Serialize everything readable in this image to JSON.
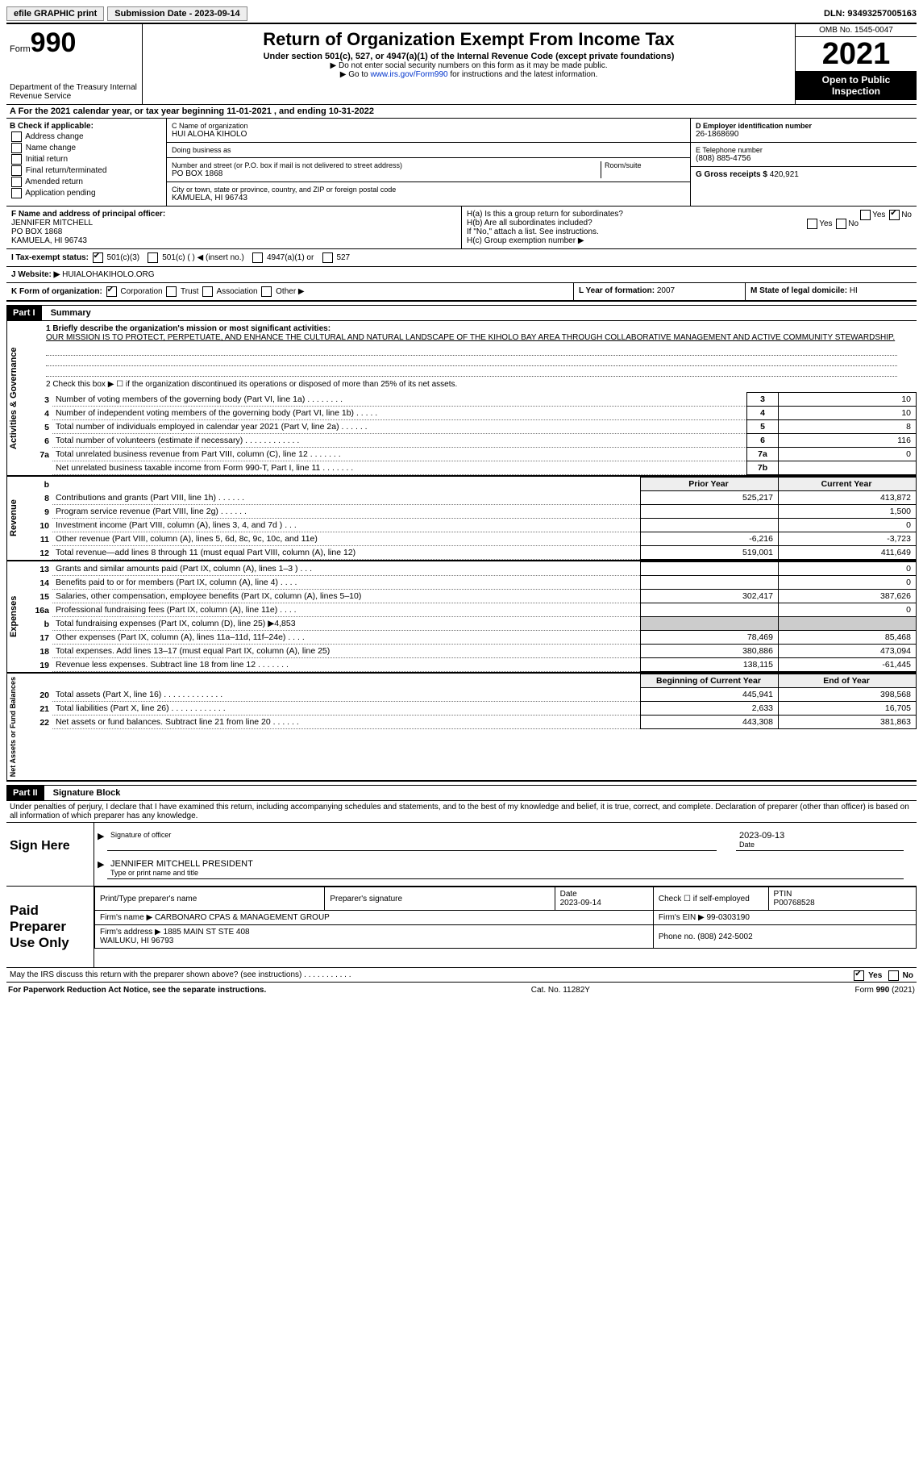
{
  "topbar": {
    "efile": "efile GRAPHIC print",
    "submission": "Submission Date - 2023-09-14",
    "dln": "DLN: 93493257005163"
  },
  "header": {
    "form_word": "Form",
    "form_num": "990",
    "dept": "Department of the Treasury\nInternal Revenue Service",
    "title": "Return of Organization Exempt From Income Tax",
    "subtitle": "Under section 501(c), 527, or 4947(a)(1) of the Internal Revenue Code (except private foundations)",
    "note1": "▶ Do not enter social security numbers on this form as it may be made public.",
    "note2_pre": "▶ Go to ",
    "note2_link": "www.irs.gov/Form990",
    "note2_post": " for instructions and the latest information.",
    "omb": "OMB No. 1545-0047",
    "year": "2021",
    "open": "Open to Public Inspection"
  },
  "rowA": "A For the 2021 calendar year, or tax year beginning 11-01-2021    , and ending 10-31-2022",
  "colB": {
    "title": "B Check if applicable:",
    "opts": [
      "Address change",
      "Name change",
      "Initial return",
      "Final return/terminated",
      "Amended return",
      "Application pending"
    ]
  },
  "colC": {
    "name_lbl": "C Name of organization",
    "name": "HUI ALOHA KIHOLO",
    "dba_lbl": "Doing business as",
    "dba": "",
    "street_lbl": "Number and street (or P.O. box if mail is not delivered to street address)",
    "room_lbl": "Room/suite",
    "street": "PO BOX 1868",
    "city_lbl": "City or town, state or province, country, and ZIP or foreign postal code",
    "city": "KAMUELA, HI  96743"
  },
  "colD": {
    "ein_lbl": "D Employer identification number",
    "ein": "26-1868690",
    "phone_lbl": "E Telephone number",
    "phone": "(808) 885-4756",
    "gross_lbl": "G Gross receipts $",
    "gross": "420,921"
  },
  "rowF": {
    "lbl": "F  Name and address of principal officer:",
    "name": "JENNIFER MITCHELL",
    "addr1": "PO BOX 1868",
    "addr2": "KAMUELA, HI  96743"
  },
  "rowH": {
    "ha": "H(a)  Is this a group return for subordinates?",
    "ha_yes": "Yes",
    "ha_no": "No",
    "hb": "H(b)  Are all subordinates included?",
    "hb_note": "If \"No,\" attach a list. See instructions.",
    "hc": "H(c)  Group exemption number ▶"
  },
  "rowI": {
    "lbl": "I    Tax-exempt status:",
    "o1": "501(c)(3)",
    "o2": "501(c) (  ) ◀ (insert no.)",
    "o3": "4947(a)(1) or",
    "o4": "527"
  },
  "rowJ": {
    "lbl": "J   Website: ▶",
    "val": "HUIALOHAKIHOLO.ORG"
  },
  "rowK": {
    "lbl": "K Form of organization:",
    "o1": "Corporation",
    "o2": "Trust",
    "o3": "Association",
    "o4": "Other ▶",
    "l_lbl": "L Year of formation:",
    "l_val": "2007",
    "m_lbl": "M State of legal domicile:",
    "m_val": "HI"
  },
  "part1": {
    "hdr": "Part I",
    "title": "Summary",
    "line1_lbl": "1  Briefly describe the organization's mission or most significant activities:",
    "mission": "OUR MISSION IS TO PROTECT, PERPETUATE, AND ENHANCE THE CULTURAL AND NATURAL LANDSCAPE OF THE KIHOLO BAY AREA THROUGH COLLABORATIVE MANAGEMENT AND ACTIVE COMMUNITY STEWARDSHIP.",
    "line2": "2   Check this box ▶ ☐  if the organization discontinued its operations or disposed of more than 25% of its net assets."
  },
  "sections": {
    "gov": "Activities & Governance",
    "rev": "Revenue",
    "exp": "Expenses",
    "net": "Net Assets or Fund Balances"
  },
  "govLines": [
    {
      "n": "3",
      "d": "Number of voting members of the governing body (Part VI, line 1a)  .   .   .   .   .   .   .   .",
      "b": "3",
      "v": "10"
    },
    {
      "n": "4",
      "d": "Number of independent voting members of the governing body (Part VI, line 1b)  .   .   .   .   .",
      "b": "4",
      "v": "10"
    },
    {
      "n": "5",
      "d": "Total number of individuals employed in calendar year 2021 (Part V, line 2a)  .   .   .   .   .   .",
      "b": "5",
      "v": "8"
    },
    {
      "n": "6",
      "d": "Total number of volunteers (estimate if necessary)   .   .   .   .   .   .   .   .   .   .   .   .",
      "b": "6",
      "v": "116"
    },
    {
      "n": "7a",
      "d": "Total unrelated business revenue from Part VIII, column (C), line 12   .   .   .   .   .   .   .",
      "b": "7a",
      "v": "0"
    },
    {
      "n": "",
      "d": "Net unrelated business taxable income from Form 990-T, Part I, line 11  .   .   .   .   .   .   .",
      "b": "7b",
      "v": ""
    }
  ],
  "colHdrs": {
    "b": "b",
    "prior": "Prior Year",
    "current": "Current Year"
  },
  "revLines": [
    {
      "n": "8",
      "d": "Contributions and grants (Part VIII, line 1h)  .   .   .   .   .   .",
      "p": "525,217",
      "c": "413,872"
    },
    {
      "n": "9",
      "d": "Program service revenue (Part VIII, line 2g)   .   .   .   .   .   .",
      "p": "",
      "c": "1,500"
    },
    {
      "n": "10",
      "d": "Investment income (Part VIII, column (A), lines 3, 4, and 7d )   .   .   .",
      "p": "",
      "c": "0"
    },
    {
      "n": "11",
      "d": "Other revenue (Part VIII, column (A), lines 5, 6d, 8c, 9c, 10c, and 11e)",
      "p": "-6,216",
      "c": "-3,723"
    },
    {
      "n": "12",
      "d": "Total revenue—add lines 8 through 11 (must equal Part VIII, column (A), line 12)",
      "p": "519,001",
      "c": "411,649"
    }
  ],
  "expLines": [
    {
      "n": "13",
      "d": "Grants and similar amounts paid (Part IX, column (A), lines 1–3 )  .   .   .",
      "p": "",
      "c": "0"
    },
    {
      "n": "14",
      "d": "Benefits paid to or for members (Part IX, column (A), line 4)  .   .   .   .",
      "p": "",
      "c": "0"
    },
    {
      "n": "15",
      "d": "Salaries, other compensation, employee benefits (Part IX, column (A), lines 5–10)",
      "p": "302,417",
      "c": "387,626"
    },
    {
      "n": "16a",
      "d": "Professional fundraising fees (Part IX, column (A), line 11e)  .   .   .   .",
      "p": "",
      "c": "0"
    },
    {
      "n": "b",
      "d": "Total fundraising expenses (Part IX, column (D), line 25) ▶4,853",
      "p": "GREY",
      "c": "GREY"
    },
    {
      "n": "17",
      "d": "Other expenses (Part IX, column (A), lines 11a–11d, 11f–24e)  .   .   .   .",
      "p": "78,469",
      "c": "85,468"
    },
    {
      "n": "18",
      "d": "Total expenses. Add lines 13–17 (must equal Part IX, column (A), line 25)",
      "p": "380,886",
      "c": "473,094"
    },
    {
      "n": "19",
      "d": "Revenue less expenses. Subtract line 18 from line 12  .   .   .   .   .   .   .",
      "p": "138,115",
      "c": "-61,445"
    }
  ],
  "netHdrs": {
    "beg": "Beginning of Current Year",
    "end": "End of Year"
  },
  "netLines": [
    {
      "n": "20",
      "d": "Total assets (Part X, line 16)  .   .   .   .   .   .   .   .   .   .   .   .   .",
      "p": "445,941",
      "c": "398,568"
    },
    {
      "n": "21",
      "d": "Total liabilities (Part X, line 26)   .   .   .   .   .   .   .   .   .   .   .   .",
      "p": "2,633",
      "c": "16,705"
    },
    {
      "n": "22",
      "d": "Net assets or fund balances. Subtract line 21 from line 20  .   .   .   .   .   .",
      "p": "443,308",
      "c": "381,863"
    }
  ],
  "part2": {
    "hdr": "Part II",
    "title": "Signature Block",
    "decl": "Under penalties of perjury, I declare that I have examined this return, including accompanying schedules and statements, and to the best of my knowledge and belief, it is true, correct, and complete. Declaration of preparer (other than officer) is based on all information of which preparer has any knowledge."
  },
  "sign": {
    "hdr": "Sign Here",
    "sig_lbl": "Signature of officer",
    "date": "2023-09-13",
    "date_lbl": "Date",
    "name": "JENNIFER MITCHELL  PRESIDENT",
    "name_lbl": "Type or print name and title"
  },
  "preparer": {
    "hdr": "Paid Preparer Use Only",
    "print_lbl": "Print/Type preparer's name",
    "sig_lbl": "Preparer's signature",
    "date_lbl": "Date",
    "date": "2023-09-14",
    "check_lbl": "Check ☐ if self-employed",
    "ptin_lbl": "PTIN",
    "ptin": "P00768528",
    "firm_name_lbl": "Firm's name    ▶",
    "firm_name": "CARBONARO CPAS & MANAGEMENT GROUP",
    "firm_ein_lbl": "Firm's EIN ▶",
    "firm_ein": "99-0303190",
    "firm_addr_lbl": "Firm's address ▶",
    "firm_addr": "1885 MAIN ST STE 408\nWAILUKU, HI  96793",
    "phone_lbl": "Phone no.",
    "phone": "(808) 242-5002"
  },
  "discuss": {
    "q": "May the IRS discuss this return with the preparer shown above? (see instructions)   .   .   .   .   .   .   .   .   .   .   .",
    "yes": "Yes",
    "no": "No"
  },
  "footer": {
    "left": "For Paperwork Reduction Act Notice, see the separate instructions.",
    "mid": "Cat. No. 11282Y",
    "right": "Form 990 (2021)"
  }
}
